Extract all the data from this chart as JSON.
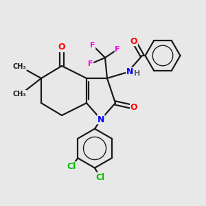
{
  "bg_color": "#e8e8e8",
  "bond_color": "#1a1a1a",
  "bond_width": 1.6,
  "atom_colors": {
    "O": "#ff0000",
    "N": "#0000ff",
    "F": "#ff00ee",
    "Cl": "#00bb00",
    "H": "#666666",
    "C": "#1a1a1a"
  },
  "font_size_atom": 9,
  "fig_size": [
    3.0,
    3.0
  ],
  "dpi": 100
}
